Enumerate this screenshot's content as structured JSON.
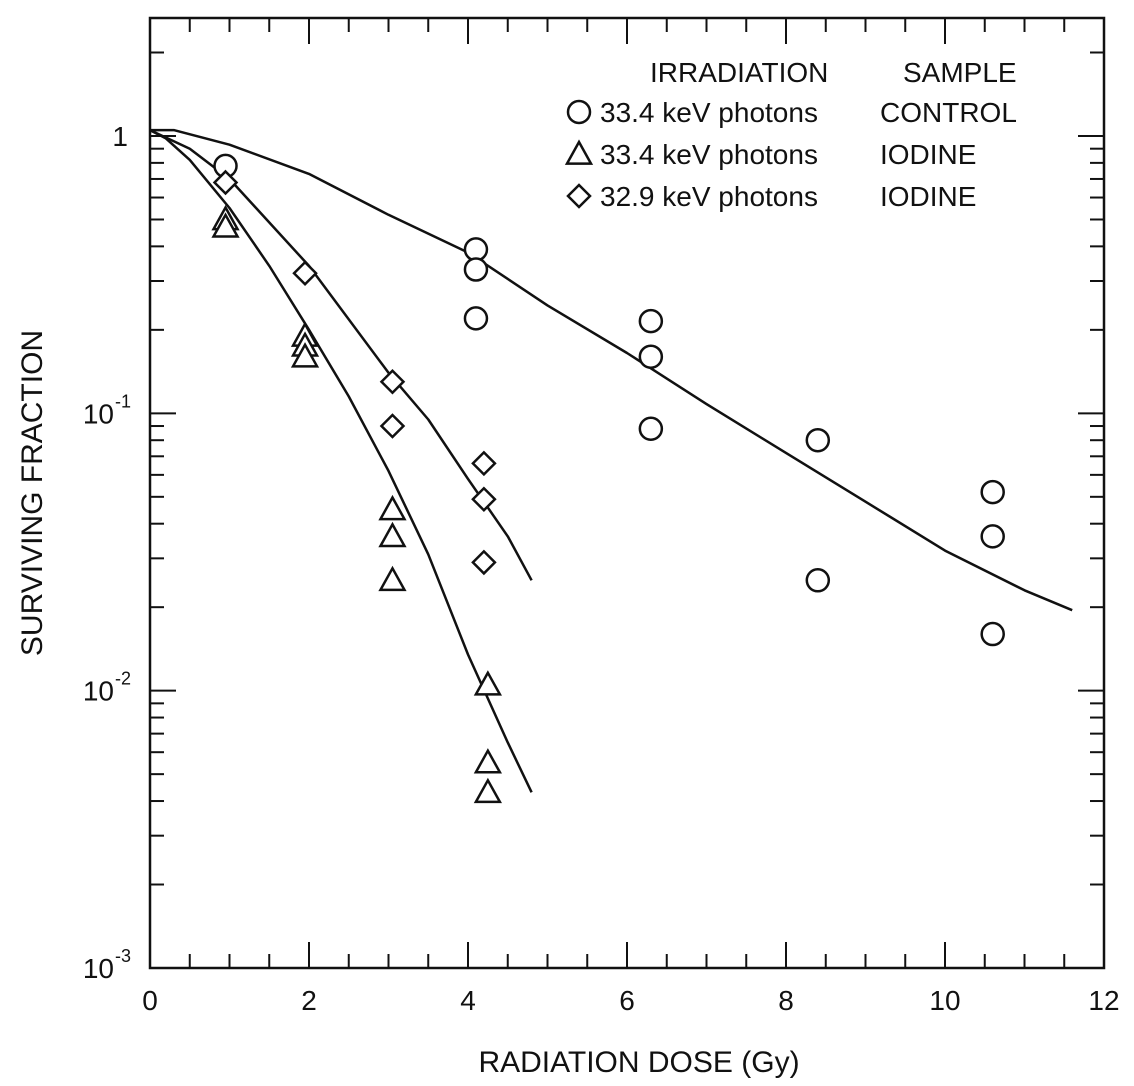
{
  "chart_data": {
    "type": "scatter",
    "xlabel": "RADIATION DOSE (Gy)",
    "ylabel": "SURVIVING FRACTION",
    "xlim": [
      0,
      12
    ],
    "ylim": [
      0.001,
      2
    ],
    "yscale": "log",
    "x_ticks": [
      0,
      2,
      4,
      6,
      8,
      10,
      12
    ],
    "y_ticks": [
      {
        "value": 1,
        "base": "1",
        "exp": ""
      },
      {
        "value": 0.1,
        "base": "10",
        "exp": "-1"
      },
      {
        "value": 0.01,
        "base": "10",
        "exp": "-2"
      },
      {
        "value": 0.001,
        "base": "10",
        "exp": "-3"
      }
    ],
    "legend": {
      "position": "top-right",
      "header_irradiation": "IRRADIATION",
      "header_sample": "SAMPLE",
      "entries": [
        {
          "marker": "circle",
          "irradiation": "33.4 keV photons",
          "sample": "CONTROL"
        },
        {
          "marker": "triangle",
          "irradiation": "33.4 keV photons",
          "sample": "IODINE"
        },
        {
          "marker": "diamond",
          "irradiation": "32.9 keV photons",
          "sample": "IODINE"
        }
      ]
    },
    "series": [
      {
        "marker": "circle",
        "points": [
          [
            0.95,
            0.78
          ],
          [
            4.1,
            0.39
          ],
          [
            4.1,
            0.33
          ],
          [
            4.1,
            0.22
          ],
          [
            6.3,
            0.215
          ],
          [
            6.3,
            0.16
          ],
          [
            6.3,
            0.088
          ],
          [
            8.4,
            0.08
          ],
          [
            8.4,
            0.025
          ],
          [
            10.6,
            0.052
          ],
          [
            10.6,
            0.036
          ],
          [
            10.6,
            0.016
          ]
        ],
        "curve": [
          [
            0,
            1.05
          ],
          [
            0.3,
            1.05
          ],
          [
            1,
            0.93
          ],
          [
            2,
            0.73
          ],
          [
            3,
            0.52
          ],
          [
            4,
            0.38
          ],
          [
            5,
            0.245
          ],
          [
            6,
            0.165
          ],
          [
            7,
            0.108
          ],
          [
            8,
            0.072
          ],
          [
            9,
            0.048
          ],
          [
            10,
            0.032
          ],
          [
            11,
            0.023
          ],
          [
            11.6,
            0.0195
          ]
        ]
      },
      {
        "marker": "triangle",
        "points": [
          [
            0.95,
            0.5
          ],
          [
            0.95,
            0.47
          ],
          [
            1.95,
            0.19
          ],
          [
            1.95,
            0.175
          ],
          [
            1.95,
            0.16
          ],
          [
            3.05,
            0.045
          ],
          [
            3.05,
            0.036
          ],
          [
            3.05,
            0.025
          ],
          [
            4.25,
            0.0105
          ],
          [
            4.25,
            0.0055
          ],
          [
            4.25,
            0.0043
          ]
        ],
        "curve": [
          [
            0,
            1.05
          ],
          [
            0.2,
            0.98
          ],
          [
            0.5,
            0.82
          ],
          [
            1,
            0.55
          ],
          [
            1.5,
            0.34
          ],
          [
            2,
            0.2
          ],
          [
            2.5,
            0.115
          ],
          [
            3,
            0.062
          ],
          [
            3.5,
            0.031
          ],
          [
            4,
            0.0135
          ],
          [
            4.5,
            0.0065
          ],
          [
            4.8,
            0.0043
          ]
        ]
      },
      {
        "marker": "diamond",
        "points": [
          [
            0.95,
            0.68
          ],
          [
            1.95,
            0.32
          ],
          [
            3.05,
            0.13
          ],
          [
            3.05,
            0.09
          ],
          [
            4.2,
            0.066
          ],
          [
            4.2,
            0.049
          ],
          [
            4.2,
            0.029
          ]
        ],
        "curve": [
          [
            0,
            1.05
          ],
          [
            0.5,
            0.9
          ],
          [
            1,
            0.7
          ],
          [
            2,
            0.34
          ],
          [
            3,
            0.14
          ],
          [
            3.5,
            0.095
          ],
          [
            4,
            0.058
          ],
          [
            4.5,
            0.036
          ],
          [
            4.8,
            0.025
          ]
        ]
      }
    ]
  }
}
